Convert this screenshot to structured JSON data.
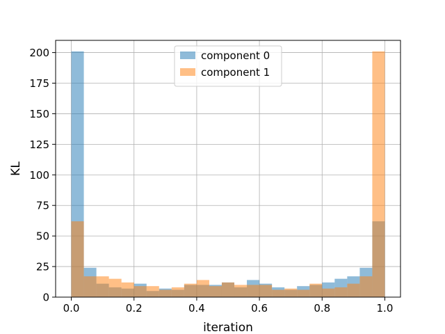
{
  "chart_data": {
    "type": "bar",
    "subtype": "overlapping-histogram",
    "xlabel": "iteration",
    "ylabel": "KL",
    "xlim": [
      -0.05,
      1.05
    ],
    "ylim": [
      0,
      210
    ],
    "xticks": [
      "0.0",
      "0.2",
      "0.4",
      "0.6",
      "0.8",
      "1.0"
    ],
    "yticks": [
      "0",
      "25",
      "50",
      "75",
      "100",
      "125",
      "150",
      "175",
      "200"
    ],
    "grid": true,
    "legend_position": "top-center",
    "bin_edges": [
      0.0,
      0.04,
      0.08,
      0.12,
      0.16,
      0.2,
      0.24,
      0.28,
      0.32,
      0.36,
      0.4,
      0.44,
      0.48,
      0.52,
      0.56,
      0.6,
      0.64,
      0.68,
      0.72,
      0.76,
      0.8,
      0.84,
      0.88,
      0.92,
      0.96,
      1.0
    ],
    "series": [
      {
        "name": "component 0",
        "color": "#1f77b4",
        "values": [
          201,
          24,
          11,
          8,
          7,
          11,
          5,
          7,
          6,
          10,
          10,
          10,
          12,
          8,
          14,
          11,
          8,
          6,
          9,
          10,
          12,
          15,
          17,
          24,
          62
        ]
      },
      {
        "name": "component 1",
        "color": "#ff7f0e",
        "values": [
          62,
          17,
          17,
          15,
          12,
          9,
          9,
          6,
          8,
          11,
          14,
          9,
          12,
          10,
          10,
          10,
          6,
          7,
          6,
          11,
          7,
          8,
          11,
          17,
          201
        ]
      }
    ]
  }
}
